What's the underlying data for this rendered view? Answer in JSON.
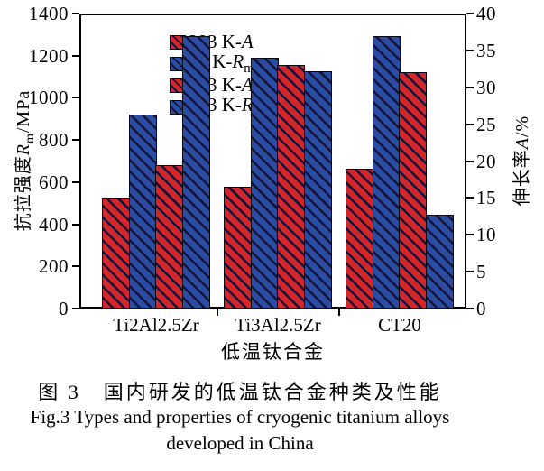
{
  "colors": {
    "red": "#d2262b",
    "blue": "#2a4da3",
    "hatch": "#14143a",
    "frame": "#000000"
  },
  "captions": {
    "cn": "图 3　国内研发的低温钛合金种类及性能",
    "en_line1": "Fig.3 Types and properties of cryogenic titanium alloys",
    "en_line2": "developed in China"
  },
  "chart_data": {
    "type": "bar",
    "categories": [
      "Ti2Al2.5Zr",
      "Ti3Al2.5Zr",
      "CT20"
    ],
    "xlabel": "低温钛合金",
    "grid": false,
    "legend_position": "top-left-inside",
    "y_left": {
      "label_cn": "抗拉强度",
      "symbol": "R",
      "sub": "m",
      "unit": "/MPa",
      "min": 0,
      "max": 1400,
      "ticks": [
        0,
        200,
        400,
        600,
        800,
        1000,
        1200,
        1400
      ]
    },
    "y_right": {
      "label_cn": "伸长率",
      "symbol": "A",
      "sub": "",
      "unit": "/%",
      "min": 0,
      "max": 40,
      "ticks": [
        0,
        5,
        10,
        15,
        20,
        25,
        30,
        35,
        40
      ]
    },
    "series": [
      {
        "name": "293 K-A",
        "name_prefix": "293 K-",
        "symbol": "A",
        "sub": "",
        "color": "red",
        "axis": "right",
        "unit": "%",
        "values": [
          15,
          16.5,
          19
        ]
      },
      {
        "name": "77 K-Rm",
        "name_prefix": "77 K-",
        "symbol": "R",
        "sub": "m",
        "color": "blue",
        "axis": "left",
        "unit": "MPa",
        "values": [
          920,
          1190,
          1295
        ]
      },
      {
        "name": "293 K-A",
        "name_prefix": "293 K-",
        "symbol": "A",
        "sub": "",
        "color": "red",
        "axis": "right",
        "unit": "%",
        "values": [
          19.5,
          33,
          32
        ]
      },
      {
        "name": "293 K-Rm",
        "name_prefix": "293 K-",
        "symbol": "R",
        "sub": "m",
        "color": "blue",
        "axis": "left",
        "unit": "MPa",
        "values": [
          1295,
          1125,
          445
        ]
      }
    ]
  }
}
